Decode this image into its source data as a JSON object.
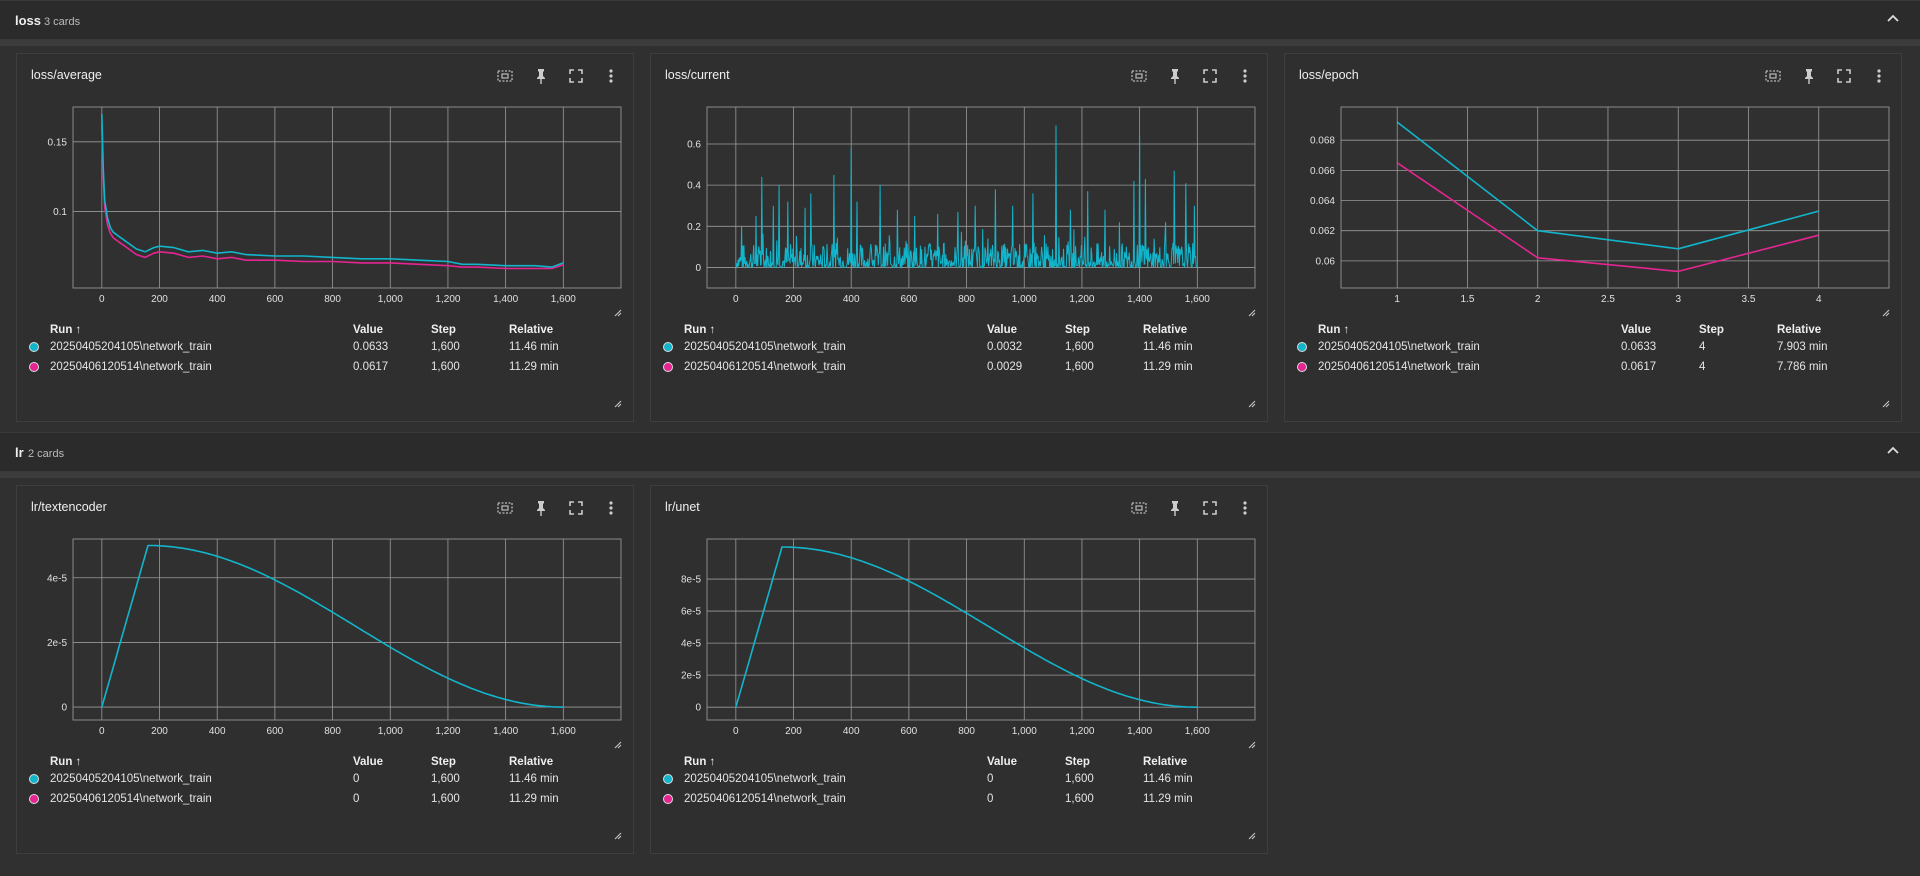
{
  "groups": [
    {
      "title": "loss",
      "count": "3 cards"
    },
    {
      "title": "lr",
      "count": "2 cards"
    }
  ],
  "legend_headers": {
    "run": "Run ↑",
    "value": "Value",
    "step": "Step",
    "relative": "Relative"
  },
  "colors": {
    "run1": "#12b5cb",
    "run2": "#e52592"
  },
  "icons": [
    "fit-domain-icon",
    "pin-icon",
    "fullscreen-icon",
    "more-vert-icon",
    "chevron-up-icon",
    "resize-handle-icon"
  ],
  "cards": [
    {
      "title": "loss/average",
      "rows": [
        {
          "run": "20250405204105\\network_train",
          "value": "0.0633",
          "step": "1,600",
          "relative": "11.46 min"
        },
        {
          "run": "20250406120514\\network_train",
          "value": "0.0617",
          "step": "1,600",
          "relative": "11.29 min"
        }
      ]
    },
    {
      "title": "loss/current",
      "rows": [
        {
          "run": "20250405204105\\network_train",
          "value": "0.0032",
          "step": "1,600",
          "relative": "11.46 min"
        },
        {
          "run": "20250406120514\\network_train",
          "value": "0.0029",
          "step": "1,600",
          "relative": "11.29 min"
        }
      ]
    },
    {
      "title": "loss/epoch",
      "rows": [
        {
          "run": "20250405204105\\network_train",
          "value": "0.0633",
          "step": "4",
          "relative": "7.903 min"
        },
        {
          "run": "20250406120514\\network_train",
          "value": "0.0617",
          "step": "4",
          "relative": "7.786 min"
        }
      ]
    },
    {
      "title": "lr/textencoder",
      "rows": [
        {
          "run": "20250405204105\\network_train",
          "value": "0",
          "step": "1,600",
          "relative": "11.46 min"
        },
        {
          "run": "20250406120514\\network_train",
          "value": "0",
          "step": "1,600",
          "relative": "11.29 min"
        }
      ]
    },
    {
      "title": "lr/unet",
      "rows": [
        {
          "run": "20250405204105\\network_train",
          "value": "0",
          "step": "1,600",
          "relative": "11.46 min"
        },
        {
          "run": "20250406120514\\network_train",
          "value": "0",
          "step": "1,600",
          "relative": "11.29 min"
        }
      ]
    }
  ],
  "chart_data": [
    {
      "type": "line",
      "card": "loss/average",
      "xlim": [
        -100,
        1800
      ],
      "ylim": [
        0.045,
        0.175
      ],
      "xticks": [
        "0",
        "200",
        "400",
        "600",
        "800",
        "1,000",
        "1,200",
        "1,400",
        "1,600"
      ],
      "yticks": [
        "0.1",
        "0.15"
      ],
      "xtick_values": [
        0,
        200,
        400,
        600,
        800,
        1000,
        1200,
        1400,
        1600
      ],
      "ytick_values": [
        0.1,
        0.15
      ],
      "series": [
        {
          "x": [
            0,
            5,
            10,
            20,
            30,
            40,
            60,
            80,
            100,
            120,
            150,
            180,
            200,
            250,
            300,
            350,
            400,
            450,
            500,
            600,
            700,
            800,
            900,
            1000,
            1100,
            1200,
            1250,
            1300,
            1400,
            1500,
            1560,
            1600
          ],
          "y": [
            0.17,
            0.13,
            0.108,
            0.095,
            0.088,
            0.085,
            0.082,
            0.079,
            0.076,
            0.073,
            0.071,
            0.074,
            0.075,
            0.074,
            0.071,
            0.072,
            0.07,
            0.071,
            0.069,
            0.068,
            0.068,
            0.067,
            0.066,
            0.066,
            0.065,
            0.064,
            0.062,
            0.062,
            0.061,
            0.061,
            0.06,
            0.063
          ]
        },
        {
          "x": [
            0,
            5,
            10,
            20,
            30,
            40,
            60,
            80,
            100,
            120,
            150,
            180,
            200,
            250,
            300,
            350,
            400,
            450,
            500,
            600,
            700,
            800,
            900,
            1000,
            1100,
            1200,
            1250,
            1300,
            1400,
            1500,
            1560,
            1600
          ],
          "y": [
            0.162,
            0.124,
            0.103,
            0.09,
            0.084,
            0.081,
            0.078,
            0.075,
            0.072,
            0.069,
            0.067,
            0.07,
            0.071,
            0.07,
            0.067,
            0.068,
            0.066,
            0.067,
            0.065,
            0.065,
            0.064,
            0.064,
            0.063,
            0.063,
            0.062,
            0.061,
            0.06,
            0.06,
            0.059,
            0.059,
            0.059,
            0.0617
          ]
        }
      ]
    },
    {
      "type": "line",
      "card": "loss/current",
      "xlim": [
        -100,
        1800
      ],
      "ylim": [
        -0.1,
        0.78
      ],
      "xticks": [
        "0",
        "200",
        "400",
        "600",
        "800",
        "1,000",
        "1,200",
        "1,400",
        "1,600"
      ],
      "yticks": [
        "0",
        "0.2",
        "0.4",
        "0.6"
      ],
      "xtick_values": [
        0,
        200,
        400,
        600,
        800,
        1000,
        1200,
        1400,
        1600
      ],
      "ytick_values": [
        0,
        0.2,
        0.4,
        0.6
      ],
      "noisy": {
        "n": 1600,
        "base_max": 0.12,
        "seed": 7
      },
      "spikes": [
        [
          20,
          0.2
        ],
        [
          70,
          0.25
        ],
        [
          90,
          0.44
        ],
        [
          130,
          0.3
        ],
        [
          150,
          0.4
        ],
        [
          180,
          0.32
        ],
        [
          240,
          0.29
        ],
        [
          260,
          0.36
        ],
        [
          340,
          0.45
        ],
        [
          400,
          0.58
        ],
        [
          420,
          0.32
        ],
        [
          500,
          0.4
        ],
        [
          560,
          0.28
        ],
        [
          620,
          0.25
        ],
        [
          700,
          0.26
        ],
        [
          770,
          0.27
        ],
        [
          830,
          0.3
        ],
        [
          900,
          0.38
        ],
        [
          960,
          0.3
        ],
        [
          1030,
          0.36
        ],
        [
          1110,
          0.69
        ],
        [
          1160,
          0.28
        ],
        [
          1220,
          0.37
        ],
        [
          1280,
          0.28
        ],
        [
          1330,
          0.22
        ],
        [
          1380,
          0.42
        ],
        [
          1400,
          0.64
        ],
        [
          1420,
          0.43
        ],
        [
          1490,
          0.22
        ],
        [
          1520,
          0.47
        ],
        [
          1560,
          0.41
        ],
        [
          1590,
          0.3
        ]
      ],
      "series": [
        {
          "name": "",
          "color_key": "run1"
        }
      ]
    },
    {
      "type": "line",
      "card": "loss/epoch",
      "xlim": [
        0.6,
        4.5
      ],
      "ylim": [
        0.0582,
        0.0702
      ],
      "xticks": [
        "1",
        "1.5",
        "2",
        "2.5",
        "3",
        "3.5",
        "4"
      ],
      "yticks": [
        "0.06",
        "0.062",
        "0.064",
        "0.066",
        "0.068"
      ],
      "xtick_values": [
        1,
        1.5,
        2,
        2.5,
        3,
        3.5,
        4
      ],
      "ytick_values": [
        0.06,
        0.062,
        0.064,
        0.066,
        0.068
      ],
      "series": [
        {
          "x": [
            1,
            2,
            3,
            4
          ],
          "y": [
            0.0692,
            0.062,
            0.0608,
            0.0633
          ]
        },
        {
          "x": [
            1,
            2,
            3,
            4
          ],
          "y": [
            0.0665,
            0.0602,
            0.0593,
            0.0617
          ]
        }
      ]
    },
    {
      "type": "line",
      "card": "lr/textencoder",
      "xlim": [
        -100,
        1800
      ],
      "ylim": [
        -4e-06,
        5.2e-05
      ],
      "xticks": [
        "0",
        "200",
        "400",
        "600",
        "800",
        "1,000",
        "1,200",
        "1,400",
        "1,600"
      ],
      "yticks": [
        "0",
        "2e-5",
        "4e-5"
      ],
      "xtick_values": [
        0,
        200,
        400,
        600,
        800,
        1000,
        1200,
        1400,
        1600
      ],
      "ytick_values": [
        0,
        2e-05,
        4e-05
      ],
      "schedule": {
        "warmup": 160,
        "total": 1600,
        "peak": 5e-05
      },
      "series": [
        {
          "color_key": "run1"
        }
      ]
    },
    {
      "type": "line",
      "card": "lr/unet",
      "xlim": [
        -100,
        1800
      ],
      "ylim": [
        -8e-06,
        0.000105
      ],
      "xticks": [
        "0",
        "200",
        "400",
        "600",
        "800",
        "1,000",
        "1,200",
        "1,400",
        "1,600"
      ],
      "yticks": [
        "0",
        "2e-5",
        "4e-5",
        "6e-5",
        "8e-5"
      ],
      "xtick_values": [
        0,
        200,
        400,
        600,
        800,
        1000,
        1200,
        1400,
        1600
      ],
      "ytick_values": [
        0,
        2e-05,
        4e-05,
        6e-05,
        8e-05
      ],
      "schedule": {
        "warmup": 160,
        "total": 1600,
        "peak": 0.0001
      },
      "series": [
        {
          "color_key": "run1"
        }
      ]
    }
  ]
}
